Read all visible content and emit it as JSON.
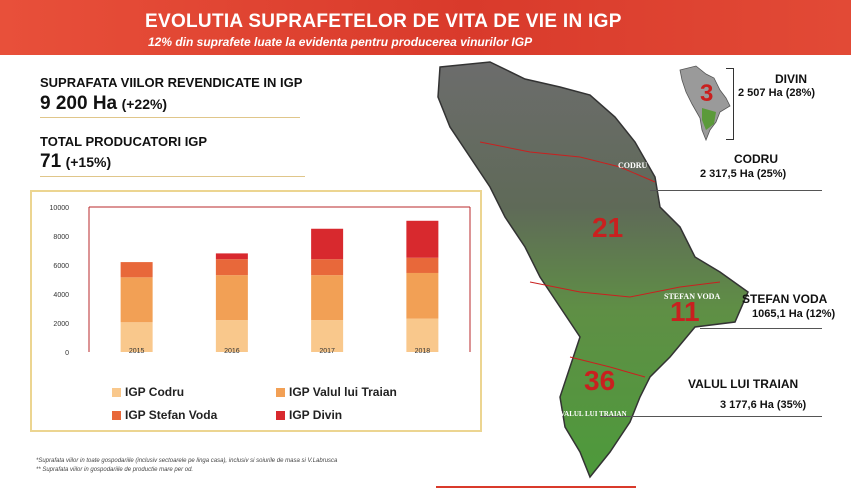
{
  "header": {
    "title": "EVOLUTIA SUPRAFETELOR DE VITA DE VIE IN IGP",
    "subtitle": "12% din suprafete luate la evidenta pentru producerea vinurilor IGP"
  },
  "kpis": {
    "area_label": "SUPRAFATA VIILOR REVENDICATE IN IGP",
    "area_value": "9 200 Ha",
    "area_change": "(+22%)",
    "producers_label": "TOTAL PRODUCATORI IGP",
    "producers_value": "71",
    "producers_change": "(+15%)"
  },
  "chart_data": {
    "type": "bar",
    "stacked": true,
    "categories": [
      "2015",
      "2016",
      "2017",
      "2018"
    ],
    "ylim": [
      0,
      10000
    ],
    "yticks": [
      "0",
      "2000",
      "4000",
      "6000",
      "8000",
      "10000"
    ],
    "grid": false,
    "legend_position": "bottom",
    "series": [
      {
        "name": "IGP Codru",
        "color": "#f9c88c",
        "values": [
          2050,
          2200,
          2200,
          2300
        ]
      },
      {
        "name": "IGP Valul lui Traian",
        "color": "#f2a055",
        "values": [
          3100,
          3100,
          3100,
          3150
        ]
      },
      {
        "name": "IGP Stefan Voda",
        "color": "#e8683a",
        "values": [
          1050,
          1100,
          1100,
          1050
        ]
      },
      {
        "name": "IGP Divin",
        "color": "#d8292e",
        "values": [
          0,
          400,
          2100,
          2550
        ]
      }
    ]
  },
  "footnotes": [
    "*Suprafata viilor in toate gospodariile (inclusiv sectoarele pe linga casa), inclusiv si soiurile de masa si V.Labrusca",
    "** Suprafata viilor in gospodariile de productie mare per od."
  ],
  "regions": [
    {
      "name": "DIVIN",
      "area": "2 507 Ha (28%)"
    },
    {
      "name": "CODRU",
      "area": "2 317,5 Ha (25%)"
    },
    {
      "name": "STEFAN VODA",
      "area": "1065,1 Ha (12%)"
    },
    {
      "name": "VALUL LUI TRAIAN",
      "area": "3 177,6 Ha (35%)"
    }
  ],
  "map": {
    "numbers": [
      "3",
      "21",
      "11",
      "36"
    ],
    "labels": [
      "CODRU",
      "STEFAN VODA",
      "VALUL LUI TRAIAN"
    ]
  }
}
